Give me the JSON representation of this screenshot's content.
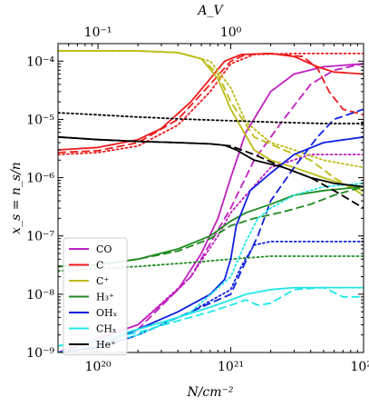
{
  "chart_data": {
    "type": "line",
    "xlabel": "N/cm⁻²",
    "ylabel": "x_s = n_s/n",
    "top_xlabel": "A_V",
    "x_scale": "log",
    "y_scale": "log",
    "xlim": [
      5e+19,
      1e+22
    ],
    "ylim": [
      1e-09,
      0.0002
    ],
    "top_xlim": [
      0.05,
      10
    ],
    "x_ticks": [
      {
        "value": 1e+20,
        "label": "10²⁰"
      },
      {
        "value": 1e+21,
        "label": "10²¹"
      },
      {
        "value": 1e+22,
        "label": "10²²"
      }
    ],
    "top_ticks": [
      {
        "value": 0.1,
        "label": "10⁻¹"
      },
      {
        "value": 1,
        "label": "10⁰"
      }
    ],
    "y_ticks": [
      {
        "value": 1e-09,
        "label": "10⁻⁹"
      },
      {
        "value": 1e-08,
        "label": "10⁻⁸"
      },
      {
        "value": 1e-07,
        "label": "10⁻⁷"
      },
      {
        "value": 1e-06,
        "label": "10⁻⁶"
      },
      {
        "value": 1e-05,
        "label": "10⁻⁵"
      },
      {
        "value": 0.0001,
        "label": "10⁻⁴"
      }
    ],
    "legend_position": "bottom-left",
    "legend": [
      {
        "label": "CO",
        "color": "#c020c0"
      },
      {
        "label": "C",
        "color": "#ee1c1c"
      },
      {
        "label": "C⁺",
        "color": "#bcbc16"
      },
      {
        "label": "H₃⁺",
        "color": "#1f8c1f"
      },
      {
        "label": "OHₓ",
        "color": "#1020e0"
      },
      {
        "label": "CHₓ",
        "color": "#20e8e8"
      },
      {
        "label": "He⁺",
        "color": "#000000"
      }
    ],
    "series": [
      {
        "species": "CO",
        "color": "#c020c0",
        "style": "solid",
        "x": [
          5e+19,
          2e+20,
          4e+20,
          6e+20,
          8e+20,
          1e+21,
          1.3e+21,
          2e+21,
          3e+21,
          5e+21,
          1e+22
        ],
        "y": [
          1e-09,
          3e-09,
          1.2e-08,
          5e-08,
          2e-07,
          1e-06,
          6e-06,
          3e-05,
          6e-05,
          8e-05,
          9e-05
        ]
      },
      {
        "species": "CO",
        "color": "#c020c0",
        "style": "dashed",
        "x": [
          5e+19,
          2e+20,
          5e+20,
          1e+21,
          1.5e+21,
          2.5e+21,
          4e+21,
          6e+21,
          1e+22
        ],
        "y": [
          1e-09,
          2.5e-09,
          2e-08,
          3e-07,
          2e-06,
          1e-05,
          4e-05,
          7e-05,
          9e-05
        ]
      },
      {
        "species": "CO",
        "color": "#c020c0",
        "style": "dotted",
        "x": [
          5e+19,
          2e+20,
          5e+20,
          8e+20,
          1e+21,
          1.3e+21,
          2e+21,
          4e+21,
          1e+22
        ],
        "y": [
          1e-09,
          3e-09,
          2e-08,
          1e-07,
          2.5e-07,
          5e-07,
          1.5e-06,
          2.5e-06,
          2.5e-06
        ]
      },
      {
        "species": "C",
        "color": "#ee1c1c",
        "style": "solid",
        "x": [
          5e+19,
          1e+20,
          2e+20,
          3e+20,
          5e+20,
          7e+20,
          9e+20,
          1.2e+21,
          2e+21,
          3e+21,
          4.5e+21,
          6e+21,
          1e+22
        ],
        "y": [
          3e-06,
          3.3e-06,
          4.5e-06,
          7e-06,
          2e-05,
          5e-05,
          0.0001,
          0.00013,
          0.000135,
          0.00012,
          8e-05,
          6.5e-05,
          6e-05
        ]
      },
      {
        "species": "C",
        "color": "#ee1c1c",
        "style": "dashed",
        "x": [
          5e+19,
          1e+20,
          2e+20,
          4e+20,
          7e+20,
          1e+21,
          1.3e+21,
          2e+21,
          3.5e+21,
          4.5e+21,
          5.5e+21,
          7e+21,
          1e+22
        ],
        "y": [
          2.7e-06,
          2.9e-06,
          4e-06,
          1e-05,
          4e-05,
          0.0001,
          0.00013,
          0.000135,
          0.00012,
          7.5e-05,
          3e-05,
          1.5e-05,
          1.2e-05
        ]
      },
      {
        "species": "C",
        "color": "#ee1c1c",
        "style": "dotted",
        "x": [
          5e+19,
          1e+20,
          2e+20,
          4e+20,
          7e+20,
          1e+21,
          1.5e+21,
          3e+21,
          1e+22
        ],
        "y": [
          2.5e-06,
          2.7e-06,
          3.5e-06,
          8e-06,
          3e-05,
          9e-05,
          0.00013,
          0.000135,
          0.000135
        ]
      },
      {
        "species": "C⁺",
        "color": "#bcbc16",
        "style": "solid",
        "x": [
          5e+19,
          2e+20,
          4e+20,
          6e+20,
          8e+20,
          1e+21,
          1.5e+21,
          2e+21,
          3e+21,
          5e+21,
          1e+22
        ],
        "y": [
          0.00015,
          0.00015,
          0.00014,
          0.00011,
          5e-05,
          1.5e-05,
          3e-06,
          2e-06,
          1.5e-06,
          1e-06,
          6e-07
        ]
      },
      {
        "species": "C⁺",
        "color": "#bcbc16",
        "style": "dashed",
        "x": [
          5e+19,
          2e+20,
          4e+20,
          6e+20,
          8e+20,
          1e+21,
          1.5e+21,
          2.5e+21,
          4e+21,
          6e+21,
          1e+22
        ],
        "y": [
          0.00015,
          0.00015,
          0.00014,
          0.00011,
          6e-05,
          2e-05,
          5e-06,
          3e-06,
          2e-06,
          1e-06,
          5e-07
        ]
      },
      {
        "species": "C⁺",
        "color": "#bcbc16",
        "style": "dotted",
        "x": [
          5e+19,
          2e+20,
          4e+20,
          7e+20,
          1e+21,
          1.3e+21,
          2e+21,
          3e+21,
          5e+21,
          1e+22
        ],
        "y": [
          0.00015,
          0.00015,
          0.00014,
          0.0001,
          3.5e-05,
          9e-06,
          4e-06,
          3e-06,
          2e-06,
          1.5e-06
        ]
      },
      {
        "species": "H₃⁺",
        "color": "#1f8c1f",
        "style": "solid",
        "x": [
          5e+19,
          1e+20,
          2e+20,
          4e+20,
          7e+20,
          1e+21,
          1.3e+21,
          2e+21,
          3e+21,
          5e+21,
          1e+22
        ],
        "y": [
          3e-08,
          3.2e-08,
          4e-08,
          6e-08,
          1e-07,
          1.8e-07,
          2.5e-07,
          3.5e-07,
          5e-07,
          6e-07,
          7e-07
        ]
      },
      {
        "species": "H₃⁺",
        "color": "#1f8c1f",
        "style": "dashed",
        "x": [
          5e+19,
          1e+20,
          2e+20,
          4e+20,
          7e+20,
          1e+21,
          1.5e+21,
          2.5e+21,
          4e+21,
          6e+21,
          1e+22
        ],
        "y": [
          3e-08,
          3.2e-08,
          4e-08,
          5.5e-08,
          9e-08,
          1.5e-07,
          2e-07,
          2.6e-07,
          3.5e-07,
          5e-07,
          7e-07
        ]
      },
      {
        "species": "H₃⁺",
        "color": "#1f8c1f",
        "style": "dotted",
        "x": [
          5e+19,
          2e+20,
          5e+20,
          1e+21,
          2e+21,
          4e+21,
          1e+22
        ],
        "y": [
          2.5e-08,
          3e-08,
          3.5e-08,
          4e-08,
          4.5e-08,
          4.5e-08,
          4.5e-08
        ]
      },
      {
        "species": "OHₓ",
        "color": "#1020e0",
        "style": "solid",
        "x": [
          5e+19,
          1e+20,
          2e+20,
          4e+20,
          7e+20,
          9e+20,
          1e+21,
          1.1e+21,
          1.4e+21,
          2e+21,
          3e+21,
          5e+21,
          1e+22
        ],
        "y": [
          1e-09,
          1.3e-09,
          2.5e-09,
          5e-09,
          1e-08,
          1.8e-08,
          4e-08,
          1.5e-07,
          6e-07,
          1.2e-06,
          2.5e-06,
          4e-06,
          5e-06
        ]
      },
      {
        "species": "OHₓ",
        "color": "#1020e0",
        "style": "dashed",
        "x": [
          5e+19,
          1e+20,
          2e+20,
          4e+20,
          7e+20,
          1e+21,
          1.2e+21,
          1.6e+21,
          2e+21,
          3e+21,
          4.5e+21,
          6e+21,
          1e+22
        ],
        "y": [
          1e-09,
          1.2e-09,
          2e-09,
          4e-09,
          7e-09,
          1e-08,
          2.5e-08,
          1e-07,
          4e-07,
          1.5e-06,
          5e-06,
          1e-05,
          1.5e-05
        ]
      },
      {
        "species": "OHₓ",
        "color": "#1020e0",
        "style": "dotted",
        "x": [
          5e+19,
          1e+20,
          2e+20,
          5e+20,
          1e+21,
          1.2e+21,
          1.5e+21,
          2e+21,
          3e+21,
          5e+21,
          1e+22
        ],
        "y": [
          1e-09,
          1.2e-09,
          2e-09,
          5e-09,
          1.2e-08,
          3e-08,
          7e-08,
          8e-08,
          8e-08,
          8e-08,
          8e-08
        ]
      },
      {
        "species": "CHₓ",
        "color": "#20e8e8",
        "style": "solid",
        "x": [
          5e+19,
          1e+20,
          2e+20,
          4e+20,
          7e+20,
          1e+21,
          1.3e+21,
          2e+21,
          3e+21,
          5e+21,
          1e+22
        ],
        "y": [
          1.3e-09,
          1.6e-09,
          2.5e-09,
          4e-09,
          6e-09,
          8e-09,
          1e-08,
          1.2e-08,
          1.3e-08,
          1.3e-08,
          1.3e-08
        ]
      },
      {
        "species": "CHₓ",
        "color": "#20e8e8",
        "style": "dashed",
        "x": [
          5e+19,
          1e+20,
          2e+20,
          4e+20,
          7e+20,
          1e+21,
          1.3e+21,
          1.6e+21,
          2e+21,
          3e+21,
          5e+21,
          7e+21,
          1e+22
        ],
        "y": [
          1.3e-09,
          1.6e-09,
          2.2e-09,
          3.5e-09,
          5e-09,
          6.5e-09,
          8e-09,
          6.5e-09,
          7e-09,
          1.2e-08,
          1.3e-08,
          9e-09,
          9e-09
        ]
      },
      {
        "species": "CHₓ",
        "color": "#20e8e8",
        "style": "dotted",
        "x": [
          5e+19,
          1e+20,
          2e+20,
          5e+20,
          1e+21,
          1.3e+21,
          1.6e+21,
          2e+21,
          3e+21,
          5e+21,
          1e+22
        ],
        "y": [
          1e-09,
          1.3e-09,
          2e-09,
          5e-09,
          2e-08,
          8e-08,
          2e-07,
          3e-07,
          5e-07,
          7e-07,
          8e-07
        ]
      },
      {
        "species": "He⁺",
        "color": "#000000",
        "style": "solid",
        "x": [
          5e+19,
          1e+20,
          2e+20,
          4e+20,
          7e+20,
          9e+20,
          1.1e+21,
          1.5e+21,
          2.5e+21,
          4e+21,
          6e+21,
          1e+22
        ],
        "y": [
          5e-06,
          4.5e-06,
          4.2e-06,
          4e-06,
          3.8e-06,
          3.6e-06,
          3e-06,
          2e-06,
          1.5e-06,
          1e-06,
          8e-07,
          7e-07
        ]
      },
      {
        "species": "He⁺",
        "color": "#000000",
        "style": "dashed",
        "x": [
          5e+19,
          1e+20,
          2e+20,
          4e+20,
          7e+20,
          1e+21,
          1.5e+21,
          2.5e+21,
          4e+21,
          6e+21,
          1e+22
        ],
        "y": [
          5e-06,
          4.5e-06,
          4.2e-06,
          4e-06,
          3.8e-06,
          3.5e-06,
          2.5e-06,
          1.5e-06,
          1e-06,
          6e-07,
          3e-07
        ]
      },
      {
        "species": "He⁺",
        "color": "#000000",
        "style": "dotted",
        "x": [
          5e+19,
          1e+20,
          2e+20,
          5e+20,
          1e+21,
          2e+21,
          5e+21,
          1e+22
        ],
        "y": [
          1.3e-05,
          1.2e-05,
          1.1e-05,
          1e-05,
          9.5e-06,
          9e-06,
          8.5e-06,
          8.5e-06
        ]
      }
    ]
  }
}
